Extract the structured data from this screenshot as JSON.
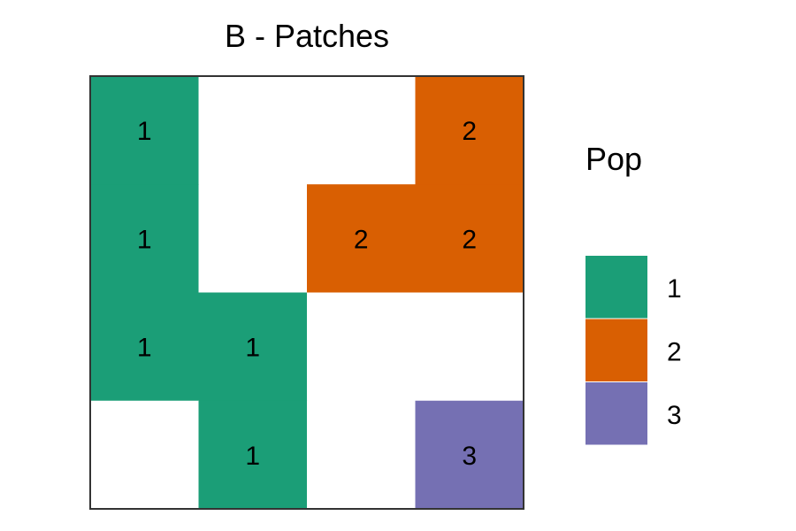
{
  "chart_data": {
    "type": "heatmap",
    "title": "B - Patches",
    "xlabel": "",
    "ylabel": "",
    "grid": false,
    "legend_position": "right",
    "rows": 4,
    "cols": 4,
    "cells": [
      [
        1,
        null,
        null,
        2
      ],
      [
        1,
        null,
        2,
        2
      ],
      [
        1,
        1,
        null,
        null
      ],
      [
        null,
        1,
        null,
        3
      ]
    ],
    "legend": {
      "title": "Pop",
      "entries": [
        {
          "label": "1",
          "color": "#1b9e77"
        },
        {
          "label": "2",
          "color": "#d95f02"
        },
        {
          "label": "3",
          "color": "#7570b3"
        }
      ]
    },
    "empty_color": "#ffffff"
  }
}
